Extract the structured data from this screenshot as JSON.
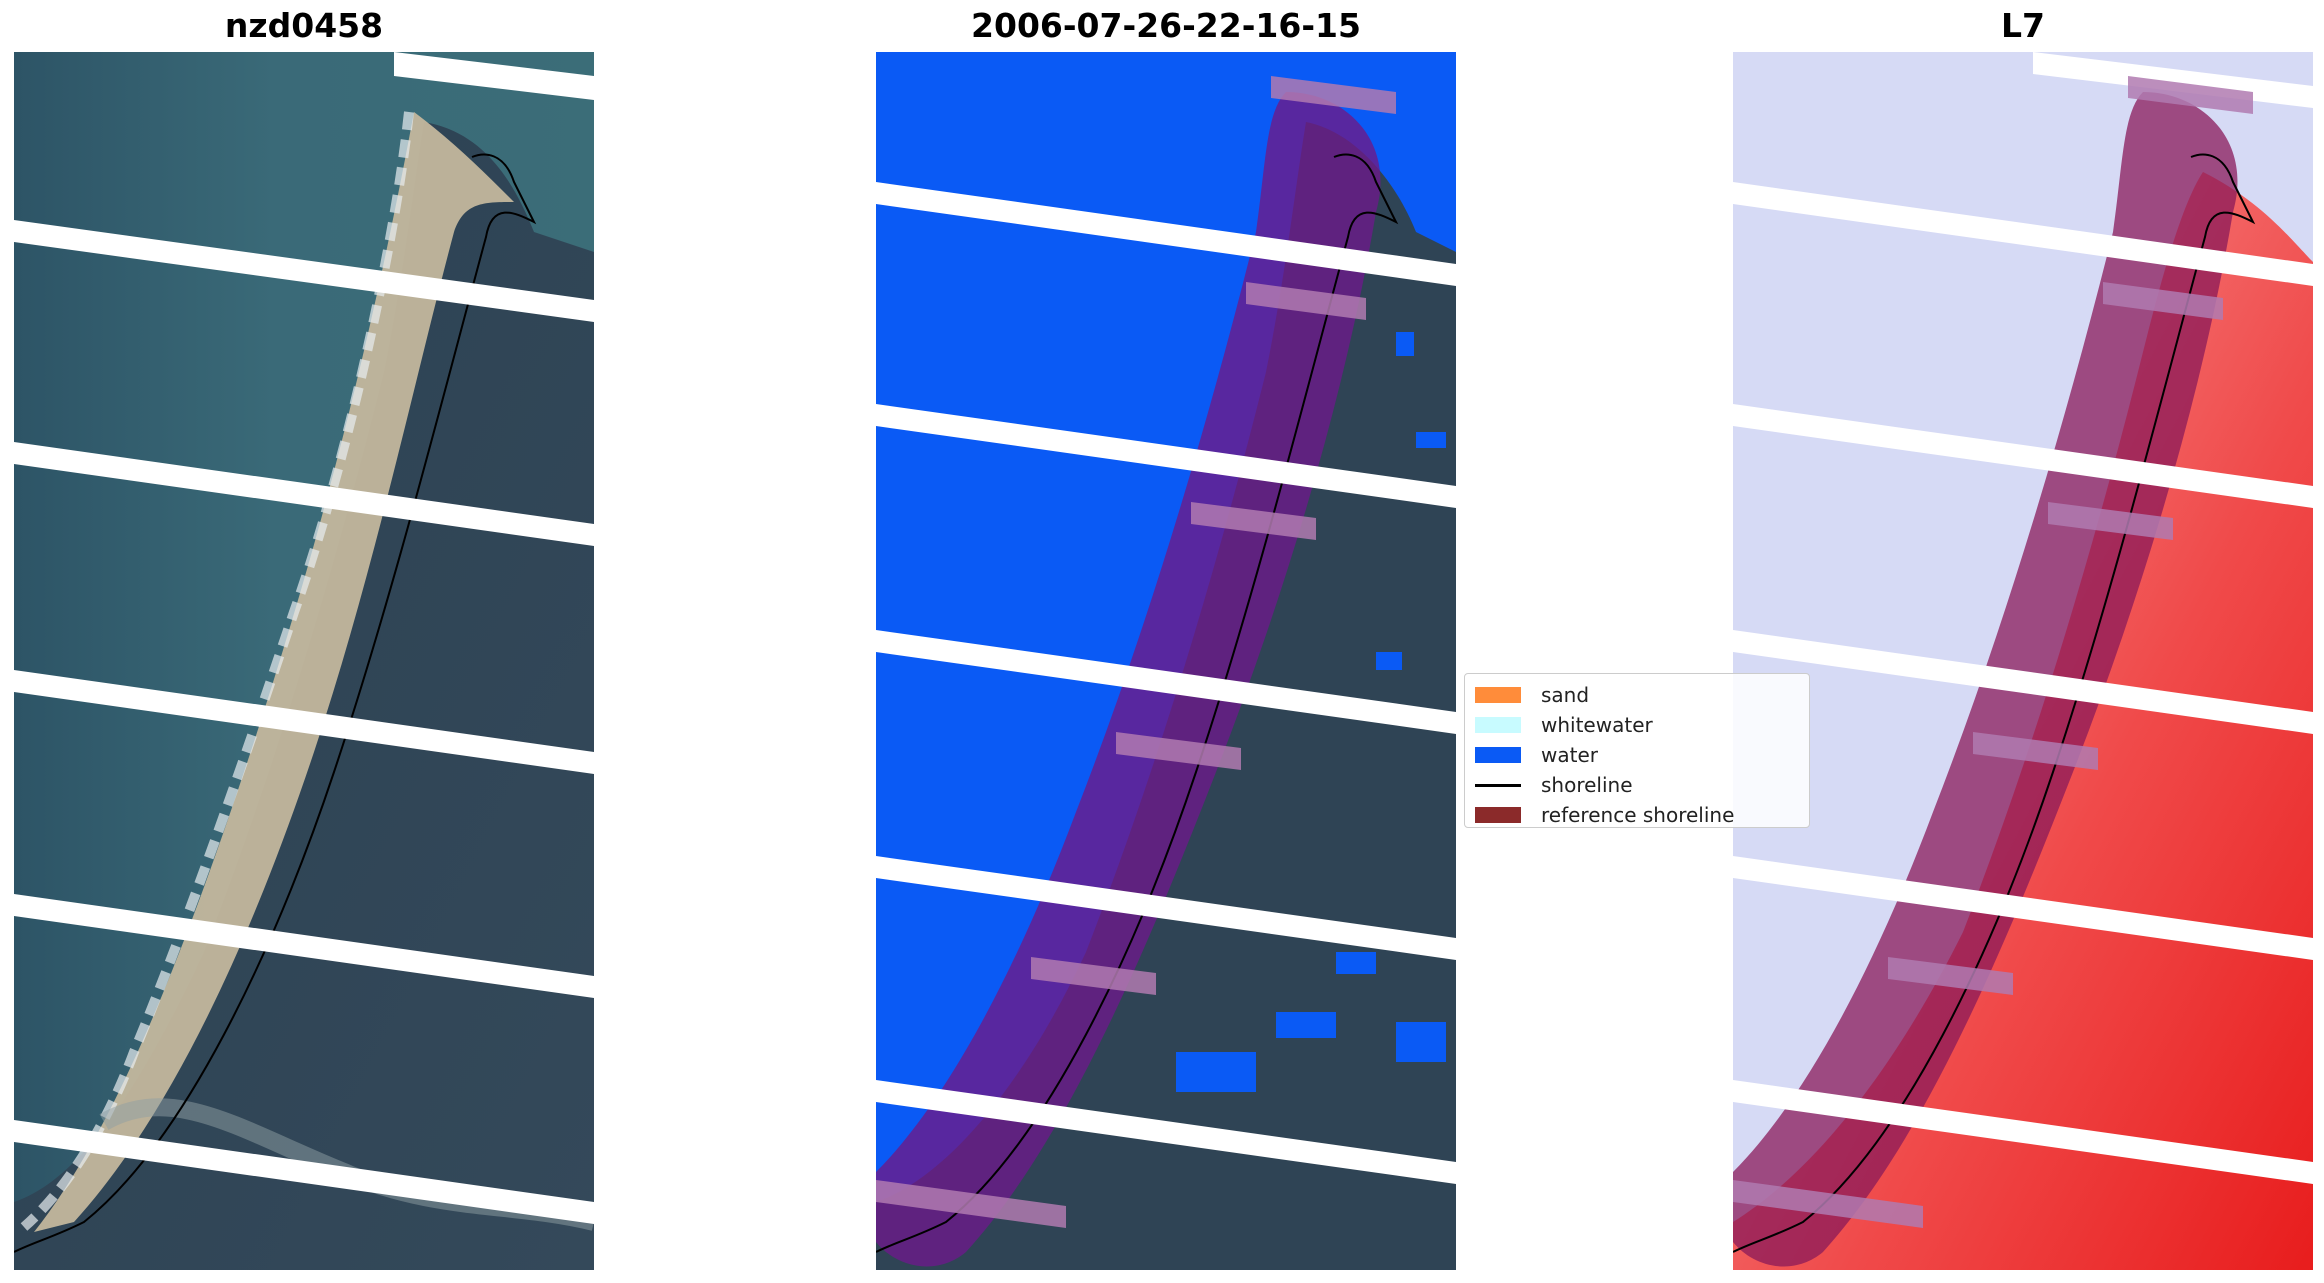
{
  "panels": {
    "rgb": {
      "title": "nzd0458"
    },
    "classification": {
      "title": "2006-07-26-22-16-15"
    },
    "index": {
      "title": "L7"
    }
  },
  "legend": {
    "items": [
      {
        "label": "sand",
        "color": "#ff8c3a",
        "kind": "patch"
      },
      {
        "label": "whitewater",
        "color": "#c8fbff",
        "kind": "patch"
      },
      {
        "label": "water",
        "color": "#0a5af5",
        "kind": "patch"
      },
      {
        "label": "shoreline",
        "color": "#000000",
        "kind": "line"
      },
      {
        "label": "reference shoreline",
        "color": "#8b2a2a",
        "kind": "patch"
      }
    ]
  },
  "colors": {
    "ocean": "#2c4a5e",
    "land": "#2f4455",
    "sand": "#c8bca3",
    "water_class": "#0a5af5",
    "reference_buffer": "#6b1a8a",
    "index_water": "#d8dcf6",
    "index_land": "#f23a3a"
  }
}
